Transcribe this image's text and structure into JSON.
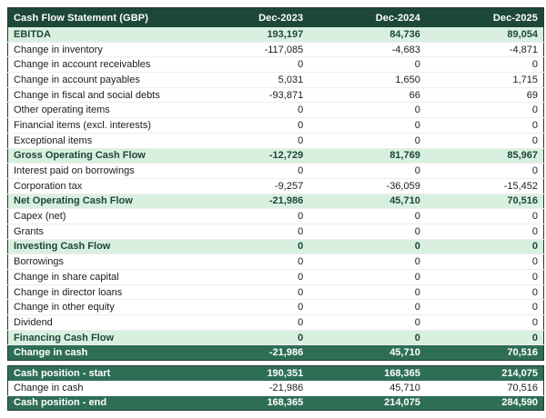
{
  "report": {
    "title": "Cash Flow Statement (GBP)",
    "columns": [
      "Dec-2023",
      "Dec-2024",
      "Dec-2025"
    ],
    "colors": {
      "header_bg": "#1d4837",
      "summary_bg": "#2e6e55",
      "highlight_bg": "#d9f0e1",
      "highlight_text": "#1d4837"
    },
    "rows": [
      {
        "label": "EBITDA",
        "style": "highlight",
        "values": [
          "193,197",
          "84,736",
          "89,054"
        ]
      },
      {
        "label": "Change in inventory",
        "style": "normal",
        "values": [
          "-117,085",
          "-4,683",
          "-4,871"
        ]
      },
      {
        "label": "Change in account receivables",
        "style": "normal",
        "values": [
          "0",
          "0",
          "0"
        ]
      },
      {
        "label": "Change in account payables",
        "style": "normal",
        "values": [
          "5,031",
          "1,650",
          "1,715"
        ]
      },
      {
        "label": "Change in fiscal and social debts",
        "style": "normal",
        "values": [
          "-93,871",
          "66",
          "69"
        ]
      },
      {
        "label": "Other operating items",
        "style": "normal",
        "values": [
          "0",
          "0",
          "0"
        ]
      },
      {
        "label": "Financial items (excl. interests)",
        "style": "normal",
        "values": [
          "0",
          "0",
          "0"
        ]
      },
      {
        "label": "Exceptional items",
        "style": "normal",
        "values": [
          "0",
          "0",
          "0"
        ]
      },
      {
        "label": "Gross Operating Cash Flow",
        "style": "highlight",
        "values": [
          "-12,729",
          "81,769",
          "85,967"
        ]
      },
      {
        "label": "Interest paid on borrowings",
        "style": "normal",
        "values": [
          "0",
          "0",
          "0"
        ]
      },
      {
        "label": "Corporation tax",
        "style": "normal",
        "values": [
          "-9,257",
          "-36,059",
          "-15,452"
        ]
      },
      {
        "label": "Net Operating Cash Flow",
        "style": "highlight",
        "values": [
          "-21,986",
          "45,710",
          "70,516"
        ]
      },
      {
        "label": "Capex (net)",
        "style": "normal",
        "values": [
          "0",
          "0",
          "0"
        ]
      },
      {
        "label": "Grants",
        "style": "normal",
        "values": [
          "0",
          "0",
          "0"
        ]
      },
      {
        "label": "Investing Cash Flow",
        "style": "highlight",
        "values": [
          "0",
          "0",
          "0"
        ]
      },
      {
        "label": "Borrowings",
        "style": "normal",
        "values": [
          "0",
          "0",
          "0"
        ]
      },
      {
        "label": "Change in share capital",
        "style": "normal",
        "values": [
          "0",
          "0",
          "0"
        ]
      },
      {
        "label": "Change in director loans",
        "style": "normal",
        "values": [
          "0",
          "0",
          "0"
        ]
      },
      {
        "label": "Change in other equity",
        "style": "normal",
        "values": [
          "0",
          "0",
          "0"
        ]
      },
      {
        "label": "Dividend",
        "style": "normal",
        "values": [
          "0",
          "0",
          "0"
        ]
      },
      {
        "label": "Financing Cash Flow",
        "style": "highlight",
        "values": [
          "0",
          "0",
          "0"
        ]
      },
      {
        "label": "Change in cash",
        "style": "dark",
        "values": [
          "-21,986",
          "45,710",
          "70,516"
        ]
      }
    ],
    "cash_position_rows": [
      {
        "label": "Cash position - start",
        "style": "dark",
        "values": [
          "190,351",
          "168,365",
          "214,075"
        ]
      },
      {
        "label": "Change in cash",
        "style": "normal",
        "values": [
          "-21,986",
          "45,710",
          "70,516"
        ]
      },
      {
        "label": "Cash position - end",
        "style": "dark",
        "values": [
          "168,365",
          "214,075",
          "284,590"
        ]
      }
    ]
  }
}
